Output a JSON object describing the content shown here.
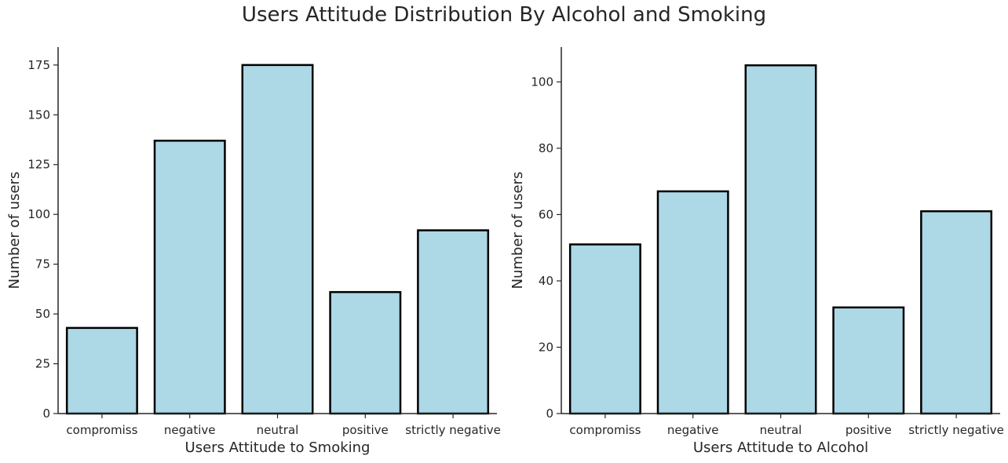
{
  "figure_title": "Users Attitude Distribution By Alcohol and Smoking",
  "colors": {
    "bar_fill": "#add8e6",
    "bar_edge": "#000000",
    "axis": "#262626"
  },
  "chart_data": [
    {
      "type": "bar",
      "categories": [
        "compromiss",
        "negative",
        "neutral",
        "positive",
        "strictly negative"
      ],
      "values": [
        43,
        137,
        175,
        61,
        92
      ],
      "xlabel": "Users Attitude to Smoking",
      "ylabel": "Number of users",
      "ylim": [
        0,
        184
      ],
      "yticks": [
        0,
        25,
        50,
        75,
        100,
        125,
        150,
        175
      ],
      "grid": false,
      "legend": "none"
    },
    {
      "type": "bar",
      "categories": [
        "compromiss",
        "negative",
        "neutral",
        "positive",
        "strictly negative"
      ],
      "values": [
        51,
        67,
        105,
        32,
        61
      ],
      "xlabel": "Users Attitude to Alcohol",
      "ylabel": "Number of users",
      "ylim": [
        0,
        110.5
      ],
      "yticks": [
        0,
        20,
        40,
        60,
        80,
        100
      ],
      "grid": false,
      "legend": "none"
    }
  ]
}
